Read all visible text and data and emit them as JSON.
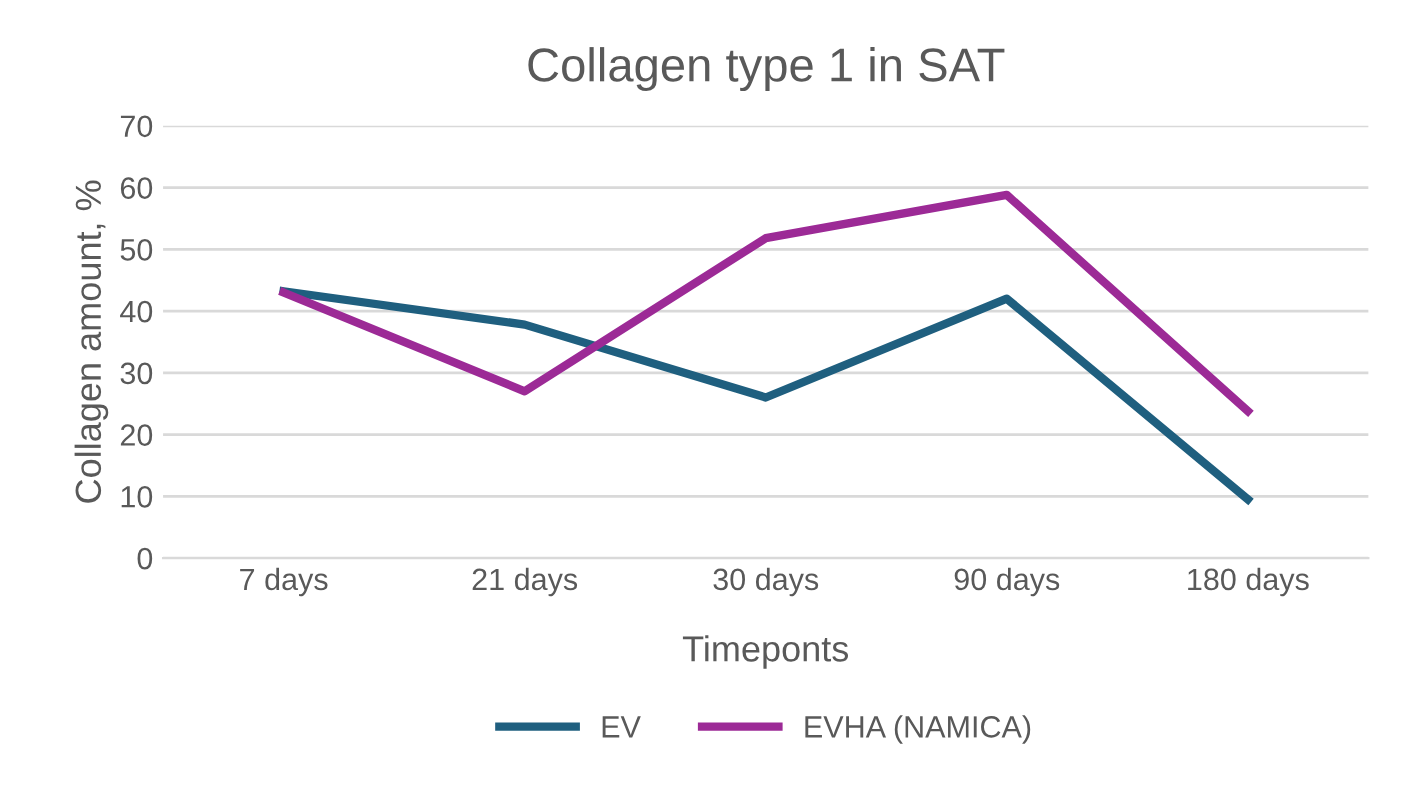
{
  "chart_data": {
    "type": "line",
    "title": "Collagen type 1 in SAT",
    "xlabel": "Timeponts",
    "ylabel": "Collagen amount, %",
    "categories": [
      "7 days",
      "21 days",
      "30 days",
      "90 days",
      "180 days"
    ],
    "series": [
      {
        "name": "EV",
        "color": "#1f5f7f",
        "values": [
          43.2,
          37.8,
          26,
          42,
          9.5
        ]
      },
      {
        "name": "EVHA (NAMICA)",
        "color": "#9c2a96",
        "values": [
          43,
          27,
          51.8,
          58.8,
          23.8
        ]
      }
    ],
    "ylim": [
      0,
      70
    ],
    "yticks": [
      0,
      10,
      20,
      30,
      40,
      50,
      60,
      70
    ],
    "grid": "y",
    "legend": "bottom",
    "marker": "none",
    "line_style": "solid"
  }
}
